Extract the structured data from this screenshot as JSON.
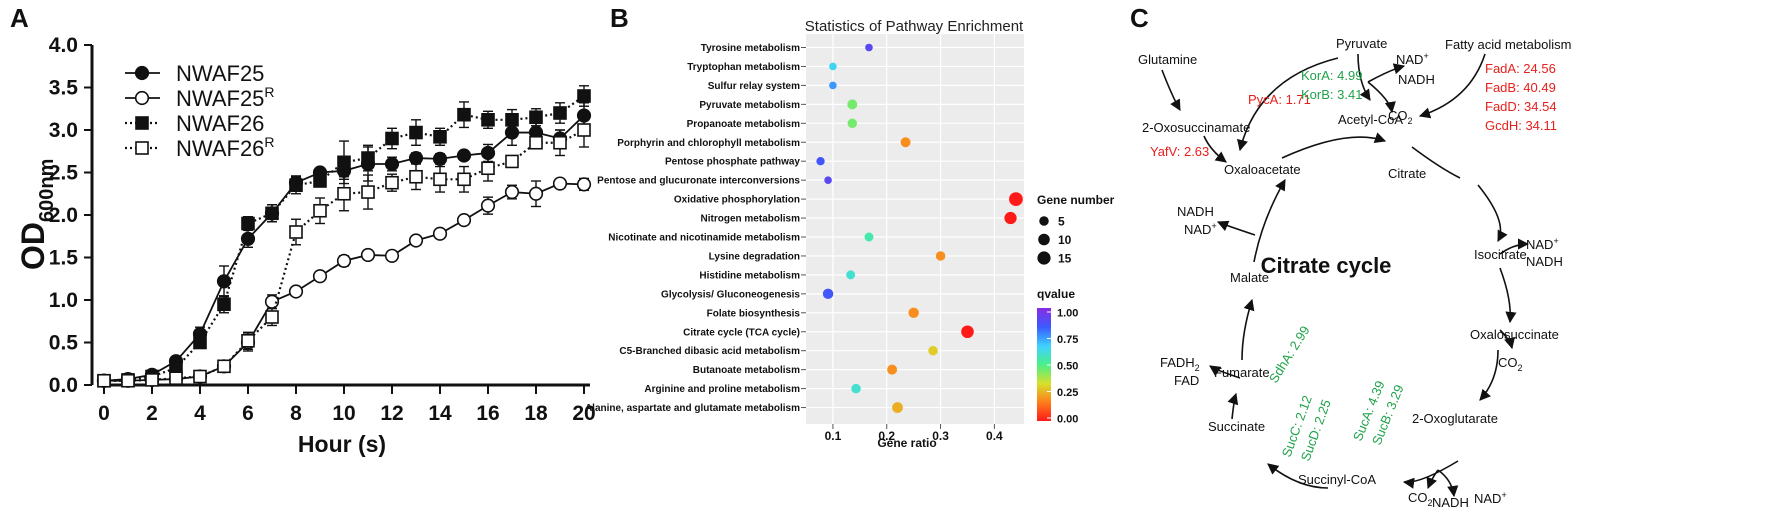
{
  "panels": {
    "a": "A",
    "b": "B",
    "c": "C"
  },
  "chart_data": [
    {
      "type": "line",
      "panel": "A",
      "title": "",
      "xlabel": "Hour (s)",
      "ylabel": "OD",
      "ylabel_sub": "600nm",
      "xlim": [
        0,
        20
      ],
      "ylim": [
        0,
        4
      ],
      "xticks": [
        "0",
        "2",
        "4",
        "6",
        "8",
        "10",
        "12",
        "14",
        "16",
        "18",
        "20"
      ],
      "yticks": [
        "0.0",
        "0.5",
        "1.0",
        "1.5",
        "2.0",
        "2.5",
        "3.0",
        "3.5",
        "4.0"
      ],
      "x": [
        0,
        1,
        2,
        3,
        4,
        5,
        6,
        7,
        8,
        9,
        10,
        11,
        12,
        13,
        14,
        15,
        16,
        17,
        18,
        19,
        20
      ],
      "series": [
        {
          "name": "NWAF25",
          "sup": "",
          "marker": "filled-circle",
          "line": "solid",
          "values": [
            0.05,
            0.07,
            0.12,
            0.28,
            0.6,
            1.22,
            1.72,
            2.02,
            2.38,
            2.5,
            2.52,
            2.6,
            2.6,
            2.67,
            2.66,
            2.7,
            2.73,
            2.97,
            2.97,
            2.9,
            3.17
          ],
          "errors": [
            0.02,
            0.02,
            0.03,
            0.05,
            0.08,
            0.18,
            0.1,
            0.1,
            0.08,
            0.05,
            0.1,
            0.2,
            0.08,
            0.06,
            0.06,
            0.05,
            0.1,
            0.15,
            0.18,
            0.1,
            0.15
          ]
        },
        {
          "name": "NWAF25",
          "sup": "R",
          "marker": "open-circle",
          "line": "solid",
          "values": [
            0.05,
            0.05,
            0.06,
            0.07,
            0.1,
            0.22,
            0.5,
            0.98,
            1.1,
            1.28,
            1.46,
            1.53,
            1.52,
            1.7,
            1.78,
            1.94,
            2.11,
            2.27,
            2.25,
            2.37,
            2.36
          ],
          "errors": [
            0.01,
            0.01,
            0.01,
            0.02,
            0.03,
            0.05,
            0.1,
            0.08,
            0.04,
            0.05,
            0.06,
            0.05,
            0.05,
            0.05,
            0.05,
            0.05,
            0.1,
            0.08,
            0.15,
            0.05,
            0.07
          ]
        },
        {
          "name": "NWAF26",
          "sup": "",
          "marker": "filled-square",
          "line": "dotted",
          "values": [
            0.05,
            0.06,
            0.1,
            0.2,
            0.5,
            0.95,
            1.9,
            2.02,
            2.35,
            2.4,
            2.62,
            2.67,
            2.9,
            2.97,
            2.92,
            3.18,
            3.12,
            3.12,
            3.15,
            3.2,
            3.4
          ],
          "errors": [
            0.02,
            0.02,
            0.03,
            0.04,
            0.06,
            0.1,
            0.08,
            0.1,
            0.1,
            0.06,
            0.25,
            0.15,
            0.12,
            0.15,
            0.1,
            0.15,
            0.1,
            0.12,
            0.1,
            0.12,
            0.12
          ]
        },
        {
          "name": "NWAF26",
          "sup": "R",
          "marker": "open-square",
          "line": "dotted",
          "values": [
            0.05,
            0.05,
            0.06,
            0.08,
            0.1,
            0.22,
            0.52,
            0.8,
            1.8,
            2.05,
            2.25,
            2.27,
            2.38,
            2.45,
            2.42,
            2.42,
            2.55,
            2.63,
            2.85,
            2.85,
            3.0
          ],
          "errors": [
            0.01,
            0.01,
            0.01,
            0.02,
            0.02,
            0.05,
            0.1,
            0.1,
            0.15,
            0.15,
            0.2,
            0.2,
            0.1,
            0.15,
            0.15,
            0.15,
            0.15,
            0.05,
            0.05,
            0.15,
            0.2
          ]
        }
      ]
    },
    {
      "type": "scatter",
      "panel": "B",
      "title": "Statistics of Pathway Enrichment",
      "xlabel": "Gene ratio",
      "xlim": [
        0.05,
        0.455
      ],
      "xticks": [
        0.1,
        0.2,
        0.3,
        0.4
      ],
      "xtick_labels": [
        "0.1",
        "0.2",
        "0.3",
        "0.4"
      ],
      "size_legend_title": "Gene number",
      "size_legend_values": [
        "5",
        "10",
        "15"
      ],
      "size_legend_numbers": [
        5,
        10,
        15
      ],
      "color_legend_title": "qvalue",
      "color_legend_ticks": [
        "1.00",
        "0.75",
        "0.50",
        "0.25",
        "0.00"
      ],
      "gradient_colors": [
        "#8a2be2",
        "#3a5bff",
        "#3fd3ff",
        "#49f08a",
        "#d7e02b",
        "#ff7a1a",
        "#ff1a1a"
      ],
      "categories": [
        "Tyrosine metabolism",
        "Tryptophan metabolism",
        "Sulfur relay system",
        "Pyruvate metabolism",
        "Propanoate metabolism",
        "Porphyrin and chlorophyll metabolism",
        "Pentose phosphate pathway",
        "Pentose and glucuronate interconversions",
        "Oxidative phosphorylation",
        "Nitrogen metabolism",
        "Nicotinate and nicotinamide metabolism",
        "Lysine degradation",
        "Histidine metabolism",
        "Glycolysis/ Gluconeogenesis",
        "Folate biosynthesis",
        "Citrate cycle (TCA cycle)",
        "C5-Branched dibasic acid metabolism",
        "Butanoate metabolism",
        "Arginine and proline metabolism",
        "Alanine, aspartate and glutamate metabolism"
      ],
      "gene_ratio": [
        0.167,
        0.1,
        0.1,
        0.136,
        0.136,
        0.235,
        0.077,
        0.091,
        0.44,
        0.43,
        0.167,
        0.3,
        0.133,
        0.091,
        0.25,
        0.35,
        0.286,
        0.21,
        0.143,
        0.22
      ],
      "gene_number": [
        2,
        2,
        2,
        6,
        5,
        6,
        3,
        2,
        17,
        12,
        4,
        5,
        4,
        7,
        7,
        13,
        5,
        6,
        5,
        8
      ],
      "qvalue": [
        0.9,
        0.65,
        0.75,
        0.45,
        0.45,
        0.2,
        0.85,
        0.9,
        0.0,
        0.0,
        0.55,
        0.2,
        0.6,
        0.85,
        0.2,
        0.0,
        0.3,
        0.2,
        0.6,
        0.25
      ]
    }
  ],
  "pathway": {
    "title": "Citrate cycle",
    "metabolites": {
      "pyruvate": "Pyruvate",
      "acetyl_coa": "Acetyl-CoA",
      "glutamine": "Glutamine",
      "oxosuccinamate": "2-Oxosuccinamate",
      "fatty_acid": "Fatty acid metabolism",
      "oxaloacetate": "Oxaloacetate",
      "citrate": "Citrate",
      "isocitrate": "Isocitrate",
      "oxalosuccinate": "Oxalosuccinate",
      "oxoglutarate": "2-Oxoglutarate",
      "succinyl_coa": "Succinyl-CoA",
      "succinate": "Succinate",
      "fumarate": "Fumarate",
      "malate": "Malate"
    },
    "cofactors": {
      "nad": "NAD",
      "nadh": "NADH",
      "co": "CO",
      "fadh": "FADH",
      "fad": "FAD",
      "plus": "+",
      "sub2": "2"
    },
    "enzymes": {
      "pyca": "PycA: 1.71",
      "yafv": "YafV: 2.63",
      "kora": "KorA: 4.99",
      "korb": "KorB: 3.41",
      "fada": "FadA: 24.56",
      "fadb": "FadB: 40.49",
      "fadd": "FadD: 34.54",
      "gcdh": "GcdH: 34.11",
      "sdha": "SdhA: 2.99",
      "succ": "SucC: 2.12",
      "sucd": "SucD: 2.25",
      "sucb": "SucB: 3.29",
      "suca": "SucA: 4.39"
    },
    "colors": {
      "up_red": "#e8201c",
      "green": "#1fa34a"
    }
  }
}
